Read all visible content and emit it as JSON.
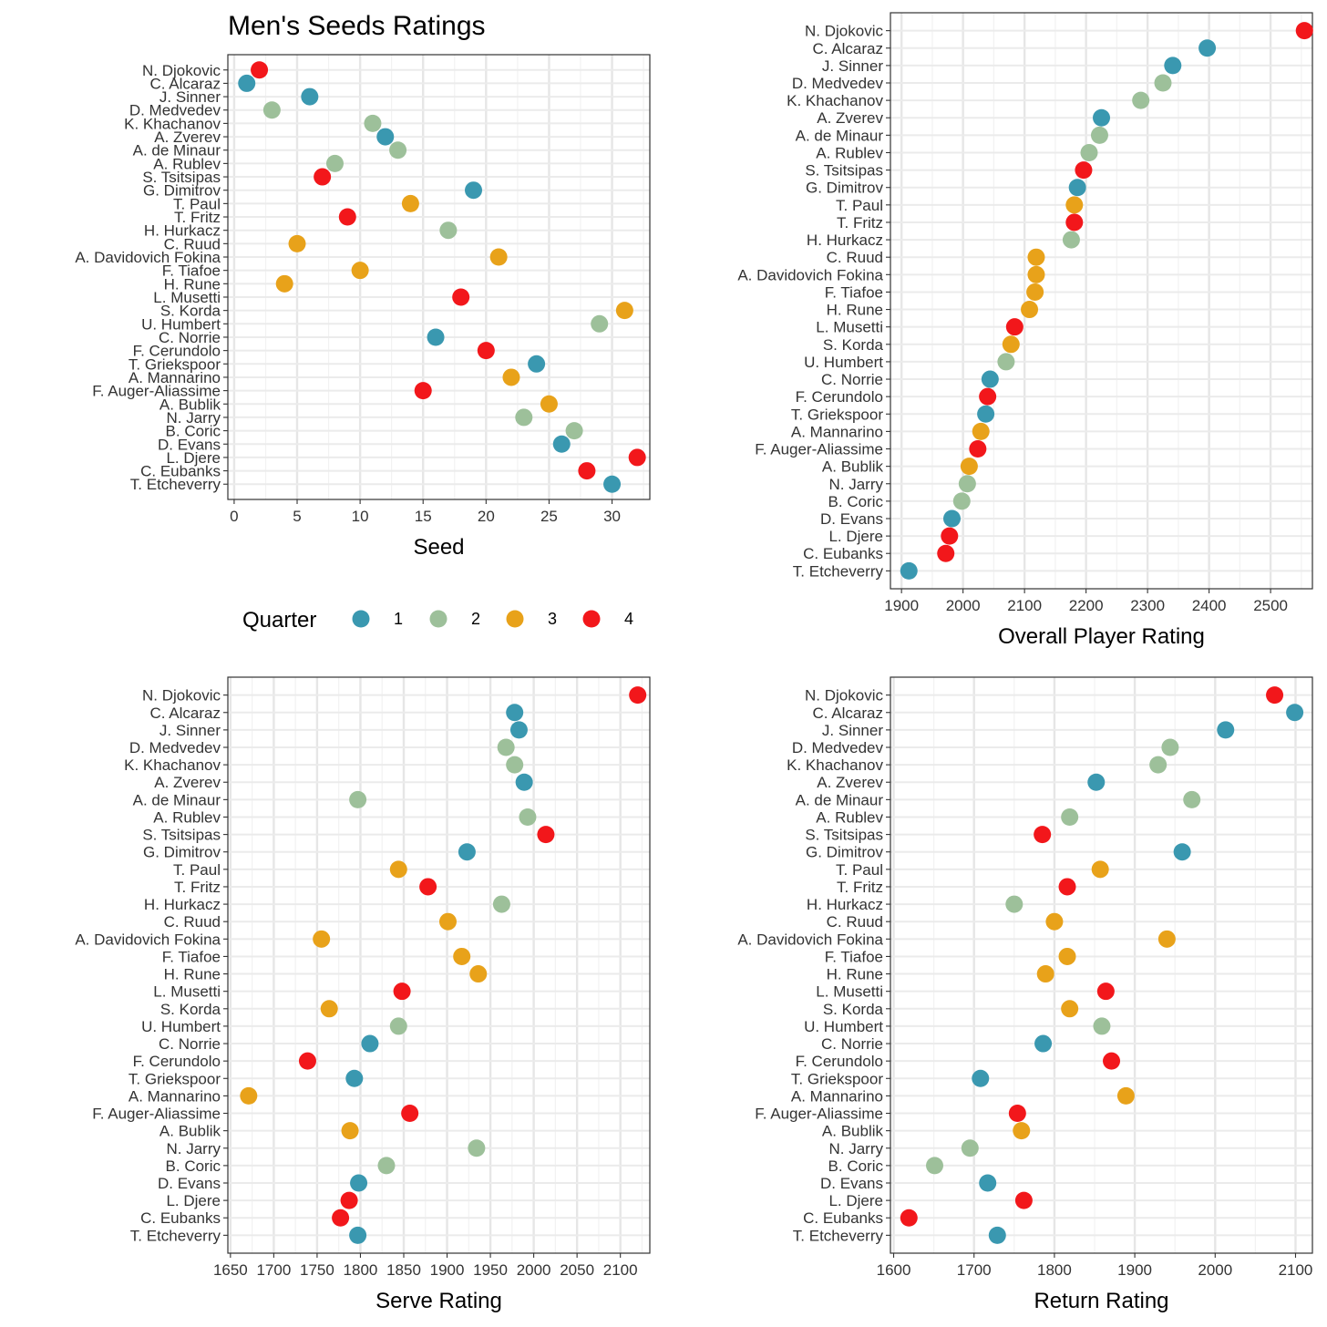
{
  "chart_data": [
    {
      "type": "scatter",
      "title": "Men's Seeds Ratings",
      "xlabel": "Seed",
      "ylabel": "",
      "xlim": [
        -0.5,
        33
      ],
      "xticks": [
        0,
        5,
        10,
        15,
        20,
        25,
        30
      ],
      "grid": true,
      "players": [
        "N. Djokovic",
        "C. Alcaraz",
        "J. Sinner",
        "D. Medvedev",
        "K. Khachanov",
        "A. Zverev",
        "A. de Minaur",
        "A. Rublev",
        "S. Tsitsipas",
        "G. Dimitrov",
        "T. Paul",
        "T. Fritz",
        "H. Hurkacz",
        "C. Ruud",
        "A. Davidovich Fokina",
        "F. Tiafoe",
        "H. Rune",
        "L. Musetti",
        "S. Korda",
        "U. Humbert",
        "C. Norrie",
        "F. Cerundolo",
        "T. Griekspoor",
        "A. Mannarino",
        "F. Auger-Aliassime",
        "A. Bublik",
        "N. Jarry",
        "B. Coric",
        "D. Evans",
        "L. Djere",
        "C. Eubanks",
        "T. Etcheverry"
      ],
      "quarter": [
        4,
        1,
        1,
        2,
        2,
        1,
        2,
        2,
        4,
        1,
        3,
        4,
        2,
        3,
        3,
        3,
        3,
        4,
        3,
        2,
        1,
        4,
        1,
        3,
        4,
        3,
        2,
        2,
        1,
        4,
        4,
        1
      ],
      "values": [
        2,
        1,
        6,
        3,
        11,
        12,
        13,
        8,
        7,
        19,
        14,
        9,
        17,
        5,
        21,
        10,
        4,
        18,
        31,
        29,
        16,
        20,
        24,
        22,
        15,
        25,
        23,
        27,
        26,
        32,
        28,
        30
      ]
    },
    {
      "type": "scatter",
      "title": "",
      "xlabel": "Overall Player Rating",
      "ylabel": "",
      "xlim": [
        1882,
        2568
      ],
      "xticks": [
        1900,
        2000,
        2100,
        2200,
        2300,
        2400,
        2500
      ],
      "grid": true,
      "players": [
        "N. Djokovic",
        "C. Alcaraz",
        "J. Sinner",
        "D. Medvedev",
        "K. Khachanov",
        "A. Zverev",
        "A. de Minaur",
        "A. Rublev",
        "S. Tsitsipas",
        "G. Dimitrov",
        "T. Paul",
        "T. Fritz",
        "H. Hurkacz",
        "C. Ruud",
        "A. Davidovich Fokina",
        "F. Tiafoe",
        "H. Rune",
        "L. Musetti",
        "S. Korda",
        "U. Humbert",
        "C. Norrie",
        "F. Cerundolo",
        "T. Griekspoor",
        "A. Mannarino",
        "F. Auger-Aliassime",
        "A. Bublik",
        "N. Jarry",
        "B. Coric",
        "D. Evans",
        "L. Djere",
        "C. Eubanks",
        "T. Etcheverry"
      ],
      "quarter": [
        4,
        1,
        1,
        2,
        2,
        1,
        2,
        2,
        4,
        1,
        3,
        4,
        2,
        3,
        3,
        3,
        3,
        4,
        3,
        2,
        1,
        4,
        1,
        3,
        4,
        3,
        2,
        2,
        1,
        4,
        4,
        1
      ],
      "values": [
        2555,
        2397,
        2341,
        2325,
        2289,
        2225,
        2222,
        2205,
        2196,
        2186,
        2181,
        2181,
        2176,
        2119,
        2119,
        2117,
        2108,
        2084,
        2078,
        2070,
        2044,
        2040,
        2037,
        2029,
        2024,
        2010,
        2007,
        1998,
        1982,
        1978,
        1972,
        1912
      ]
    },
    {
      "type": "scatter",
      "title": "",
      "xlabel": "Serve Rating",
      "ylabel": "",
      "xlim": [
        1647,
        2134
      ],
      "xticks": [
        1650,
        1700,
        1750,
        1800,
        1850,
        1900,
        1950,
        2000,
        2050,
        2100
      ],
      "grid": true,
      "players": [
        "N. Djokovic",
        "C. Alcaraz",
        "J. Sinner",
        "D. Medvedev",
        "K. Khachanov",
        "A. Zverev",
        "A. de Minaur",
        "A. Rublev",
        "S. Tsitsipas",
        "G. Dimitrov",
        "T. Paul",
        "T. Fritz",
        "H. Hurkacz",
        "C. Ruud",
        "A. Davidovich Fokina",
        "F. Tiafoe",
        "H. Rune",
        "L. Musetti",
        "S. Korda",
        "U. Humbert",
        "C. Norrie",
        "F. Cerundolo",
        "T. Griekspoor",
        "A. Mannarino",
        "F. Auger-Aliassime",
        "A. Bublik",
        "N. Jarry",
        "B. Coric",
        "D. Evans",
        "L. Djere",
        "C. Eubanks",
        "T. Etcheverry"
      ],
      "quarter": [
        4,
        1,
        1,
        2,
        2,
        1,
        2,
        2,
        4,
        1,
        3,
        4,
        2,
        3,
        3,
        3,
        3,
        4,
        3,
        2,
        1,
        4,
        1,
        3,
        4,
        3,
        2,
        2,
        1,
        4,
        4,
        1
      ],
      "values": [
        2120,
        1978,
        1983,
        1968,
        1978,
        1989,
        1797,
        1993,
        2014,
        1923,
        1844,
        1878,
        1963,
        1901,
        1755,
        1917,
        1936,
        1848,
        1764,
        1844,
        1811,
        1739,
        1793,
        1671,
        1857,
        1788,
        1934,
        1830,
        1798,
        1787,
        1777,
        1797
      ]
    },
    {
      "type": "scatter",
      "title": "",
      "xlabel": "Return Rating",
      "ylabel": "",
      "xlim": [
        1596,
        2121
      ],
      "xticks": [
        1600,
        1700,
        1800,
        1900,
        2000,
        2100
      ],
      "grid": true,
      "players": [
        "N. Djokovic",
        "C. Alcaraz",
        "J. Sinner",
        "D. Medvedev",
        "K. Khachanov",
        "A. Zverev",
        "A. de Minaur",
        "A. Rublev",
        "S. Tsitsipas",
        "G. Dimitrov",
        "T. Paul",
        "T. Fritz",
        "H. Hurkacz",
        "C. Ruud",
        "A. Davidovich Fokina",
        "F. Tiafoe",
        "H. Rune",
        "L. Musetti",
        "S. Korda",
        "U. Humbert",
        "C. Norrie",
        "F. Cerundolo",
        "T. Griekspoor",
        "A. Mannarino",
        "F. Auger-Aliassime",
        "A. Bublik",
        "N. Jarry",
        "B. Coric",
        "D. Evans",
        "L. Djere",
        "C. Eubanks",
        "T. Etcheverry"
      ],
      "quarter": [
        4,
        1,
        1,
        2,
        2,
        1,
        2,
        2,
        4,
        1,
        3,
        4,
        2,
        3,
        3,
        3,
        3,
        4,
        3,
        2,
        1,
        4,
        1,
        3,
        4,
        3,
        2,
        2,
        1,
        4,
        4,
        1
      ],
      "values": [
        2074,
        2099,
        2013,
        1944,
        1929,
        1852,
        1971,
        1819,
        1785,
        1959,
        1857,
        1816,
        1750,
        1800,
        1940,
        1816,
        1789,
        1864,
        1819,
        1859,
        1786,
        1871,
        1708,
        1889,
        1754,
        1759,
        1695,
        1651,
        1717,
        1762,
        1619,
        1729
      ]
    }
  ],
  "legend": {
    "title": "Quarter",
    "position": "center",
    "items": [
      {
        "label": "1",
        "color": "#3A98B0"
      },
      {
        "label": "2",
        "color": "#9DC09A"
      },
      {
        "label": "3",
        "color": "#E8A21A"
      },
      {
        "label": "4",
        "color": "#F2171B"
      }
    ]
  }
}
